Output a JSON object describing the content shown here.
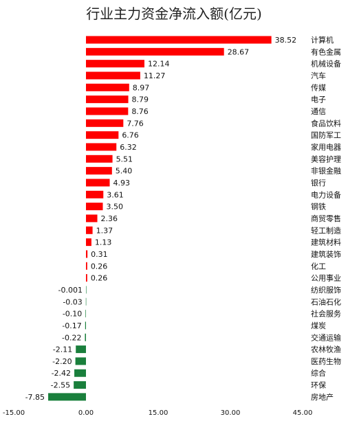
{
  "chart_data": {
    "type": "bar",
    "orientation": "horizontal",
    "title": "行业主力资金净流入额(亿元)",
    "xlim": [
      -15,
      45
    ],
    "xticks": [
      "-15.00",
      "0.00",
      "15.00",
      "30.00",
      "45.00"
    ],
    "xtick_values": [
      -15,
      0,
      15,
      30,
      45
    ],
    "grid": false,
    "colors": {
      "positive": "#ff0000",
      "negative": "#1a7f3c"
    },
    "categories": [
      "计算机",
      "有色金属",
      "机械设备",
      "汽车",
      "传媒",
      "电子",
      "通信",
      "食品饮料",
      "国防军工",
      "家用电器",
      "美容护理",
      "非银金融",
      "银行",
      "电力设备",
      "钢铁",
      "商贸零售",
      "轻工制造",
      "建筑材料",
      "建筑装饰",
      "化工",
      "公用事业",
      "纺织服饰",
      "石油石化",
      "社会服务",
      "煤炭",
      "交通运输",
      "农林牧渔",
      "医药生物",
      "综合",
      "环保",
      "房地产"
    ],
    "value_labels": [
      "38.52",
      "28.67",
      "12.14",
      "11.27",
      "8.97",
      "8.79",
      "8.76",
      "7.76",
      "6.76",
      "6.32",
      "5.51",
      "5.40",
      "4.93",
      "3.61",
      "3.50",
      "2.36",
      "1.37",
      "1.13",
      "0.31",
      "0.26",
      "0.26",
      "-0.001",
      "-0.03",
      "-0.10",
      "-0.17",
      "-0.22",
      "-2.11",
      "-2.20",
      "-2.42",
      "-2.55",
      "-7.85"
    ],
    "values": [
      38.52,
      28.67,
      12.14,
      11.27,
      8.97,
      8.79,
      8.76,
      7.76,
      6.76,
      6.32,
      5.51,
      5.4,
      4.93,
      3.61,
      3.5,
      2.36,
      1.37,
      1.13,
      0.31,
      0.26,
      0.26,
      -0.001,
      -0.03,
      -0.1,
      -0.17,
      -0.22,
      -2.11,
      -2.2,
      -2.42,
      -2.55,
      -7.85
    ]
  }
}
